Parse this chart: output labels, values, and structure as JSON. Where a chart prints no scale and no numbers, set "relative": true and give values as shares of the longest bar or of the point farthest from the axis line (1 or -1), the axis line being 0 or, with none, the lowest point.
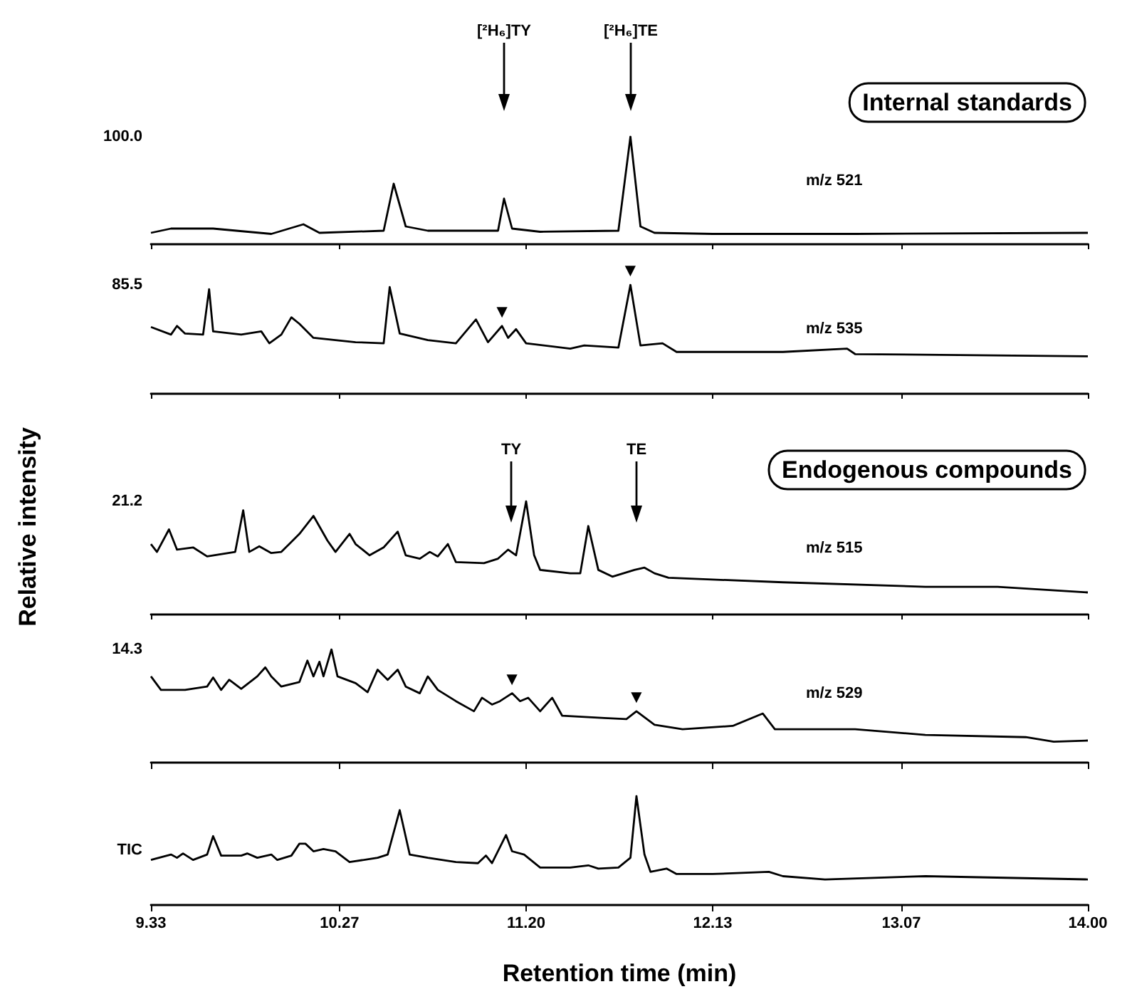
{
  "chart_data": [
    {
      "type": "line",
      "relative": true,
      "marker": "none",
      "tick_labels": false,
      "xlim": [
        9.33,
        14.0
      ],
      "annotations": [
        "100.0",
        "m/z 521",
        "Internal standards",
        "[²H₆]TY",
        "[²H₆]TE"
      ],
      "xticks": [
        9.33,
        10.27,
        11.2,
        12.13,
        13.07,
        14
      ],
      "series": [
        {
          "color": "#000000",
          "x": [
            9.33,
            9.43,
            9.64,
            9.93,
            10.09,
            10.17,
            10.49,
            10.54,
            10.6,
            10.71,
            11.06,
            11.09,
            11.13,
            11.27,
            11.66,
            11.72,
            11.77,
            11.84,
            12.13,
            12.84,
            14.0
          ],
          "values": [
            0.1,
            0.14,
            0.14,
            0.09,
            0.18,
            0.1,
            0.12,
            0.56,
            0.16,
            0.12,
            0.12,
            0.42,
            0.14,
            0.11,
            0.12,
            1,
            0.16,
            0.1,
            0.09,
            0.09,
            0.1
          ]
        }
      ]
    },
    {
      "type": "line",
      "relative": true,
      "marker": "none",
      "tick_labels": false,
      "xlim": [
        9.33,
        14.0
      ],
      "xticks": [
        9.33,
        10.27,
        11.2,
        12.13,
        13.07,
        14
      ],
      "annotations": [
        "85.5",
        "m/z 535",
        {
          "text": "▼",
          "x": 11.08,
          "y": 0.62
        },
        {
          "text": "▼",
          "x": 11.72,
          "y": 1
        }
      ],
      "series": [
        {
          "color": "#000000",
          "x": [
            9.33,
            9.43,
            9.46,
            9.5,
            9.59,
            9.62,
            9.64,
            9.78,
            9.88,
            9.92,
            9.98,
            10.03,
            10.07,
            10.14,
            10.35,
            10.49,
            10.52,
            10.57,
            10.71,
            10.85,
            10.95,
            11.01,
            11.08,
            11.11,
            11.15,
            11.2,
            11.42,
            11.49,
            11.66,
            11.72,
            11.77,
            11.88,
            11.95,
            12.48,
            12.8,
            12.84,
            14.0
          ],
          "values": [
            0.61,
            0.54,
            0.62,
            0.55,
            0.54,
            0.96,
            0.57,
            0.54,
            0.57,
            0.46,
            0.54,
            0.7,
            0.64,
            0.51,
            0.47,
            0.46,
            0.98,
            0.55,
            0.49,
            0.46,
            0.68,
            0.47,
            0.62,
            0.51,
            0.59,
            0.46,
            0.41,
            0.44,
            0.42,
            1,
            0.44,
            0.46,
            0.38,
            0.38,
            0.41,
            0.36,
            0.34
          ]
        }
      ]
    },
    {
      "type": "line",
      "relative": true,
      "marker": "none",
      "tick_labels": false,
      "ylabel": "Relative intensity",
      "xlim": [
        9.33,
        14.0
      ],
      "annotations": [
        "21.2",
        "m/z 515",
        "Endogenous compounds",
        "TY",
        "TE"
      ],
      "xticks": [
        9.33,
        10.27,
        11.2,
        12.13,
        13.07,
        14
      ],
      "series": [
        {
          "color": "#000000",
          "x": [
            9.33,
            9.36,
            9.42,
            9.46,
            9.54,
            9.61,
            9.75,
            9.79,
            9.82,
            9.87,
            9.93,
            9.98,
            10.07,
            10.14,
            10.21,
            10.25,
            10.32,
            10.35,
            10.42,
            10.49,
            10.56,
            10.6,
            10.67,
            10.72,
            10.76,
            10.81,
            10.85,
            10.99,
            11.06,
            11.11,
            11.15,
            11.2,
            11.24,
            11.27,
            11.42,
            11.47,
            11.51,
            11.56,
            11.63,
            11.74,
            11.79,
            11.84,
            11.91,
            12.48,
            13.19,
            13.55,
            14.0
          ],
          "values": [
            0.62,
            0.55,
            0.75,
            0.57,
            0.59,
            0.51,
            0.55,
            0.92,
            0.55,
            0.6,
            0.54,
            0.55,
            0.71,
            0.87,
            0.65,
            0.55,
            0.71,
            0.62,
            0.52,
            0.59,
            0.73,
            0.52,
            0.49,
            0.55,
            0.51,
            0.62,
            0.46,
            0.45,
            0.49,
            0.57,
            0.52,
            1,
            0.52,
            0.39,
            0.36,
            0.36,
            0.78,
            0.39,
            0.33,
            0.39,
            0.41,
            0.36,
            0.32,
            0.28,
            0.24,
            0.24,
            0.19
          ]
        }
      ]
    },
    {
      "type": "line",
      "relative": true,
      "marker": "none",
      "tick_labels": false,
      "xlim": [
        9.33,
        14.0
      ],
      "xticks": [
        9.33,
        10.27,
        11.2,
        12.13,
        13.07,
        14
      ],
      "annotations": [
        "14.3",
        "m/z 529",
        {
          "text": "▼",
          "x": 11.13,
          "y": 0.61
        },
        {
          "text": "▼",
          "x": 11.75,
          "y": 0.45
        }
      ],
      "series": [
        {
          "color": "#000000",
          "x": [
            9.33,
            9.38,
            9.5,
            9.61,
            9.64,
            9.68,
            9.72,
            9.78,
            9.86,
            9.9,
            9.93,
            9.98,
            10.07,
            10.11,
            10.14,
            10.17,
            10.19,
            10.23,
            10.26,
            10.35,
            10.41,
            10.46,
            10.51,
            10.56,
            10.6,
            10.67,
            10.71,
            10.76,
            10.85,
            10.94,
            10.98,
            11.03,
            11.07,
            11.13,
            11.17,
            11.21,
            11.27,
            11.33,
            11.38,
            11.59,
            11.7,
            11.75,
            11.84,
            11.98,
            12.23,
            12.38,
            12.44,
            12.84,
            13.19,
            13.69,
            13.83,
            14.0
          ],
          "values": [
            0.76,
            0.64,
            0.64,
            0.67,
            0.75,
            0.64,
            0.73,
            0.65,
            0.76,
            0.84,
            0.76,
            0.67,
            0.71,
            0.9,
            0.76,
            0.89,
            0.76,
            1,
            0.76,
            0.7,
            0.62,
            0.82,
            0.73,
            0.82,
            0.67,
            0.61,
            0.76,
            0.64,
            0.54,
            0.45,
            0.57,
            0.51,
            0.54,
            0.61,
            0.54,
            0.57,
            0.45,
            0.57,
            0.41,
            0.39,
            0.38,
            0.45,
            0.33,
            0.29,
            0.32,
            0.43,
            0.29,
            0.29,
            0.24,
            0.22,
            0.18,
            0.19
          ]
        }
      ]
    },
    {
      "type": "line",
      "relative": true,
      "marker": "none",
      "tick_labels": "x",
      "xlabel": "Retention time (min)",
      "xlim": [
        9.33,
        14.0
      ],
      "xticks": [
        9.33,
        10.27,
        {
          "value": 11.2,
          "label": "11.20"
        },
        12.13,
        13.07,
        {
          "value": 14,
          "label": "14.00"
        }
      ],
      "annotations": [
        "TIC"
      ],
      "series": [
        {
          "color": "#000000",
          "x": [
            9.33,
            9.43,
            9.46,
            9.49,
            9.54,
            9.61,
            9.64,
            9.68,
            9.78,
            9.81,
            9.86,
            9.93,
            9.96,
            10.03,
            10.07,
            10.1,
            10.14,
            10.19,
            10.25,
            10.32,
            10.46,
            10.51,
            10.57,
            10.62,
            10.71,
            10.85,
            10.96,
            11.0,
            11.03,
            11.1,
            11.13,
            11.19,
            11.27,
            11.42,
            11.51,
            11.56,
            11.66,
            11.72,
            11.75,
            11.79,
            11.82,
            11.9,
            11.95,
            12.13,
            12.41,
            12.48,
            12.69,
            13.19,
            14.0
          ],
          "values": [
            0.41,
            0.46,
            0.43,
            0.47,
            0.41,
            0.46,
            0.63,
            0.45,
            0.45,
            0.47,
            0.43,
            0.46,
            0.41,
            0.45,
            0.56,
            0.56,
            0.49,
            0.51,
            0.49,
            0.39,
            0.43,
            0.46,
            0.87,
            0.46,
            0.43,
            0.39,
            0.38,
            0.45,
            0.38,
            0.64,
            0.49,
            0.46,
            0.34,
            0.34,
            0.36,
            0.33,
            0.34,
            0.43,
            1,
            0.46,
            0.3,
            0.33,
            0.28,
            0.28,
            0.3,
            0.26,
            0.23,
            0.26,
            0.23
          ]
        }
      ]
    }
  ]
}
